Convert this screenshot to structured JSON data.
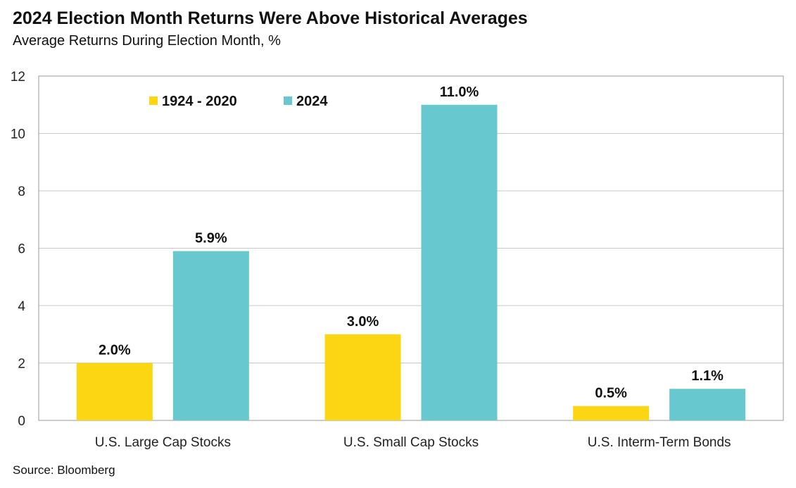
{
  "title": "2024 Election Month Returns Were Above Historical Averages",
  "subtitle": "Average Returns During Election Month, %",
  "source": "Source: Bloomberg",
  "chart_data": {
    "type": "bar",
    "categories": [
      "U.S. Large Cap Stocks",
      "U.S. Small Cap Stocks",
      "U.S. Interm-Term Bonds"
    ],
    "series": [
      {
        "name": "1924 - 2020",
        "values": [
          2.0,
          3.0,
          0.5
        ],
        "labels": [
          "2.0%",
          "3.0%",
          "0.5%"
        ],
        "color": "#FCD612"
      },
      {
        "name": "2024",
        "values": [
          5.9,
          11.0,
          1.1
        ],
        "labels": [
          "5.9%",
          "11.0%",
          "1.1%"
        ],
        "color": "#67C8CF"
      }
    ],
    "ylim": [
      0,
      12
    ],
    "yticks": [
      0,
      2,
      4,
      6,
      8,
      10,
      12
    ],
    "grid": true,
    "legend": "top-left"
  }
}
